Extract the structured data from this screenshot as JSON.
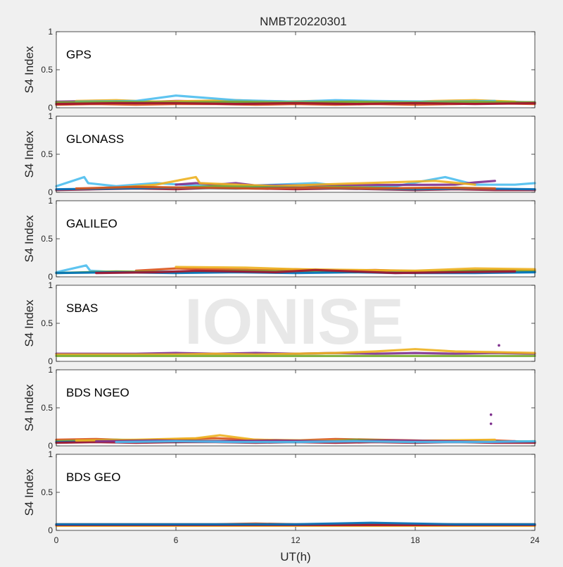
{
  "chart_data": {
    "type": "scatter",
    "title": "NMBT20220301",
    "xlabel": "UT(h)",
    "ylabel": "S4 Index",
    "xlim": [
      0,
      24
    ],
    "ylim": [
      0,
      1
    ],
    "x_ticks": [
      "0",
      "6",
      "12",
      "18",
      "24"
    ],
    "y_ticks": [
      "0",
      "0.5",
      "1"
    ],
    "watermark": "IONISE",
    "grid": false,
    "palette": [
      "#0072bd",
      "#d95319",
      "#edb120",
      "#7e2f8e",
      "#77ac30",
      "#4dbeee",
      "#a2142f"
    ],
    "panels": [
      {
        "name": "GPS",
        "traces": [
          {
            "color": "#0072bd",
            "x": [
              0,
              2,
              4,
              6,
              8,
              10,
              12,
              14,
              16,
              18,
              20,
              22,
              24
            ],
            "y": [
              0.06,
              0.07,
              0.06,
              0.08,
              0.07,
              0.06,
              0.07,
              0.06,
              0.07,
              0.06,
              0.07,
              0.06,
              0.07
            ]
          },
          {
            "color": "#d95319",
            "x": [
              0,
              2,
              4,
              6,
              8,
              10,
              12,
              14,
              16,
              18,
              20,
              22,
              24
            ],
            "y": [
              0.04,
              0.05,
              0.04,
              0.05,
              0.05,
              0.04,
              0.05,
              0.04,
              0.05,
              0.04,
              0.05,
              0.06,
              0.05
            ]
          },
          {
            "color": "#7e2f8e",
            "x": [
              0,
              2,
              4,
              6,
              8,
              10,
              12,
              14,
              16,
              18,
              20,
              22,
              24
            ],
            "y": [
              0.08,
              0.09,
              0.07,
              0.09,
              0.08,
              0.09,
              0.08,
              0.09,
              0.08,
              0.07,
              0.09,
              0.08,
              0.07
            ]
          },
          {
            "color": "#edb120",
            "x": [
              1,
              3,
              5,
              7,
              9,
              11,
              13,
              15,
              17,
              19,
              21,
              23
            ],
            "y": [
              0.09,
              0.1,
              0.08,
              0.09,
              0.1,
              0.08,
              0.09,
              0.08,
              0.07,
              0.09,
              0.1,
              0.08
            ]
          },
          {
            "color": "#4dbeee",
            "x": [
              1,
              4,
              6,
              9,
              12,
              14,
              16,
              19,
              22
            ],
            "y": [
              0.08,
              0.09,
              0.16,
              0.1,
              0.08,
              0.1,
              0.09,
              0.08,
              0.09
            ]
          },
          {
            "color": "#77ac30",
            "x": [
              0,
              3,
              6,
              9,
              12,
              15,
              18,
              21,
              24
            ],
            "y": [
              0.07,
              0.08,
              0.07,
              0.08,
              0.07,
              0.08,
              0.07,
              0.08,
              0.07
            ]
          },
          {
            "color": "#a2142f",
            "x": [
              0,
              3,
              6,
              9,
              12,
              15,
              18,
              21,
              24
            ],
            "y": [
              0.05,
              0.06,
              0.06,
              0.05,
              0.06,
              0.05,
              0.06,
              0.05,
              0.06
            ]
          }
        ]
      },
      {
        "name": "GLONASS",
        "traces": [
          {
            "color": "#4dbeee",
            "x": [
              0,
              1.4,
              1.6,
              3,
              5,
              7,
              9,
              11,
              13,
              15,
              17,
              19.5,
              21,
              23,
              24
            ],
            "y": [
              0.08,
              0.2,
              0.12,
              0.08,
              0.12,
              0.09,
              0.08,
              0.1,
              0.12,
              0.06,
              0.08,
              0.2,
              0.1,
              0.1,
              0.12
            ]
          },
          {
            "color": "#a2142f",
            "x": [
              0,
              2,
              4,
              6,
              8,
              10,
              12,
              14,
              16,
              18,
              20,
              22,
              24
            ],
            "y": [
              0.03,
              0.04,
              0.05,
              0.04,
              0.06,
              0.05,
              0.04,
              0.05,
              0.04,
              0.03,
              0.04,
              0.03,
              0.03
            ]
          },
          {
            "color": "#7e2f8e",
            "x": [
              6,
              7,
              8,
              9,
              10,
              20,
              21,
              22
            ],
            "y": [
              0.1,
              0.12,
              0.1,
              0.12,
              0.09,
              0.1,
              0.13,
              0.15
            ]
          },
          {
            "color": "#edb120",
            "x": [
              3,
              5,
              7,
              7.2,
              11,
              13,
              19,
              21
            ],
            "y": [
              0.06,
              0.1,
              0.2,
              0.12,
              0.08,
              0.1,
              0.15,
              0.1
            ]
          },
          {
            "color": "#77ac30",
            "x": [
              2,
              4,
              6,
              8,
              10,
              12,
              14,
              16,
              18,
              20,
              22
            ],
            "y": [
              0.05,
              0.07,
              0.06,
              0.08,
              0.07,
              0.06,
              0.07,
              0.06,
              0.05,
              0.06,
              0.05
            ]
          },
          {
            "color": "#0072bd",
            "x": [
              0,
              3,
              6,
              9,
              12,
              15,
              18,
              21,
              24
            ],
            "y": [
              0.04,
              0.05,
              0.06,
              0.05,
              0.06,
              0.05,
              0.04,
              0.05,
              0.04
            ]
          },
          {
            "color": "#d95319",
            "x": [
              1,
              4,
              7,
              10,
              13,
              16,
              19,
              22
            ],
            "y": [
              0.05,
              0.07,
              0.06,
              0.05,
              0.06,
              0.05,
              0.06,
              0.05
            ]
          }
        ]
      },
      {
        "name": "GALILEO",
        "traces": [
          {
            "color": "#4dbeee",
            "x": [
              0,
              1.5,
              1.7,
              3,
              5,
              7,
              9,
              11,
              13,
              15,
              17,
              19,
              21,
              23,
              24
            ],
            "y": [
              0.06,
              0.15,
              0.08,
              0.06,
              0.07,
              0.06,
              0.07,
              0.06,
              0.07,
              0.06,
              0.05,
              0.06,
              0.07,
              0.06,
              0.06
            ]
          },
          {
            "color": "#d95319",
            "x": [
              4,
              6,
              8,
              10,
              12,
              14,
              16,
              18,
              20,
              22,
              24
            ],
            "y": [
              0.08,
              0.11,
              0.1,
              0.09,
              0.1,
              0.08,
              0.09,
              0.07,
              0.08,
              0.09,
              0.08
            ]
          },
          {
            "color": "#77ac30",
            "x": [
              0,
              3,
              6,
              9,
              12,
              15,
              18,
              21,
              24
            ],
            "y": [
              0.05,
              0.07,
              0.06,
              0.08,
              0.07,
              0.06,
              0.07,
              0.08,
              0.07
            ]
          },
          {
            "color": "#edb120",
            "x": [
              6,
              9.5,
              12,
              18,
              21,
              24
            ],
            "y": [
              0.13,
              0.12,
              0.1,
              0.08,
              0.11,
              0.1
            ]
          },
          {
            "color": "#0072bd",
            "x": [
              0,
              3,
              6,
              9,
              12,
              15,
              18,
              21,
              24
            ],
            "y": [
              0.05,
              0.06,
              0.05,
              0.06,
              0.05,
              0.06,
              0.05,
              0.05,
              0.06
            ]
          },
          {
            "color": "#a2142f",
            "x": [
              2,
              5,
              7,
              11,
              13,
              17,
              20,
              23
            ],
            "y": [
              0.05,
              0.06,
              0.08,
              0.06,
              0.09,
              0.05,
              0.06,
              0.07
            ]
          }
        ]
      },
      {
        "name": "SBAS",
        "traces": [
          {
            "color": "#7e2f8e",
            "x": [
              0,
              2,
              4,
              6,
              8,
              10,
              12,
              14,
              16,
              18,
              20,
              22,
              24
            ],
            "y": [
              0.1,
              0.1,
              0.1,
              0.11,
              0.1,
              0.11,
              0.1,
              0.11,
              0.1,
              0.11,
              0.1,
              0.11,
              0.1
            ]
          },
          {
            "color": "#edb120",
            "x": [
              0,
              2,
              4,
              6,
              8,
              10,
              12,
              14,
              16,
              18,
              20,
              22,
              24
            ],
            "y": [
              0.09,
              0.09,
              0.09,
              0.09,
              0.1,
              0.09,
              0.1,
              0.11,
              0.13,
              0.16,
              0.13,
              0.12,
              0.11
            ]
          },
          {
            "color": "#77ac30",
            "x": [
              0,
              3,
              6,
              9,
              12,
              15,
              18,
              21,
              24
            ],
            "y": [
              0.07,
              0.07,
              0.07,
              0.07,
              0.07,
              0.07,
              0.07,
              0.07,
              0.07
            ]
          }
        ]
      },
      {
        "name": "BDS NGEO",
        "traces": [
          {
            "color": "#d95319",
            "x": [
              0,
              2,
              4,
              6,
              8,
              10,
              12,
              14,
              16,
              18,
              20,
              22,
              24
            ],
            "y": [
              0.08,
              0.09,
              0.07,
              0.09,
              0.1,
              0.08,
              0.07,
              0.09,
              0.08,
              0.07,
              0.06,
              0.07,
              0.05
            ]
          },
          {
            "color": "#77ac30",
            "x": [
              0,
              3,
              6,
              9,
              12,
              15,
              18,
              21,
              24
            ],
            "y": [
              0.06,
              0.08,
              0.07,
              0.06,
              0.05,
              0.08,
              0.06,
              0.05,
              0.06
            ]
          },
          {
            "color": "#0072bd",
            "x": [
              0,
              3,
              6,
              9,
              12,
              15,
              18,
              21,
              24
            ],
            "y": [
              0.05,
              0.06,
              0.05,
              0.06,
              0.05,
              0.06,
              0.05,
              0.06,
              0.05
            ]
          },
          {
            "color": "#a2142f",
            "x": [
              0,
              2,
              4,
              6,
              8,
              10,
              12,
              14,
              16,
              18,
              20,
              22,
              24
            ],
            "y": [
              0.04,
              0.05,
              0.04,
              0.05,
              0.05,
              0.04,
              0.05,
              0.04,
              0.05,
              0.04,
              0.05,
              0.04,
              0.04
            ]
          },
          {
            "color": "#edb120",
            "x": [
              1,
              4,
              7,
              8.2,
              10,
              13,
              16,
              19,
              22
            ],
            "y": [
              0.07,
              0.08,
              0.1,
              0.14,
              0.08,
              0.07,
              0.06,
              0.07,
              0.08
            ]
          },
          {
            "color": "#7e2f8e",
            "x": [
              2,
              5,
              8,
              11,
              14,
              17,
              20,
              21.8,
              23
            ],
            "y": [
              0.06,
              0.07,
              0.06,
              0.07,
              0.06,
              0.07,
              0.06,
              0.05,
              0.06
            ]
          },
          {
            "color": "#4dbeee",
            "x": [
              3,
              6,
              9,
              12,
              15,
              18,
              21,
              24
            ],
            "y": [
              0.05,
              0.06,
              0.05,
              0.05,
              0.06,
              0.05,
              0.05,
              0.06
            ]
          }
        ]
      },
      {
        "name": "BDS GEO",
        "traces": [
          {
            "color": "#d95319",
            "x": [
              0,
              2,
              4,
              6,
              8,
              10,
              12,
              14,
              16,
              18,
              20,
              22,
              24
            ],
            "y": [
              0.08,
              0.08,
              0.08,
              0.08,
              0.08,
              0.09,
              0.08,
              0.08,
              0.09,
              0.08,
              0.08,
              0.08,
              0.08
            ]
          },
          {
            "color": "#edb120",
            "x": [
              0,
              2,
              4,
              6,
              8,
              10,
              12,
              14,
              16,
              18,
              20,
              22,
              24
            ],
            "y": [
              0.06,
              0.06,
              0.06,
              0.06,
              0.06,
              0.06,
              0.06,
              0.06,
              0.06,
              0.06,
              0.06,
              0.06,
              0.06
            ]
          },
          {
            "color": "#a2142f",
            "x": [
              0,
              3,
              6,
              9,
              12,
              15,
              18,
              21,
              24
            ],
            "y": [
              0.07,
              0.07,
              0.07,
              0.07,
              0.07,
              0.07,
              0.07,
              0.07,
              0.07
            ]
          },
          {
            "color": "#0072bd",
            "x": [
              0,
              4,
              8,
              12,
              15.8,
              20,
              24
            ],
            "y": [
              0.08,
              0.08,
              0.08,
              0.08,
              0.1,
              0.08,
              0.08
            ]
          }
        ]
      }
    ],
    "outliers": [
      {
        "panel": "SBAS",
        "color": "#7e2f8e",
        "x": 22.2,
        "y": 0.21
      },
      {
        "panel": "BDS NGEO",
        "color": "#7e2f8e",
        "x": 21.8,
        "y": 0.41
      },
      {
        "panel": "BDS NGEO",
        "color": "#7e2f8e",
        "x": 21.8,
        "y": 0.29
      }
    ]
  }
}
